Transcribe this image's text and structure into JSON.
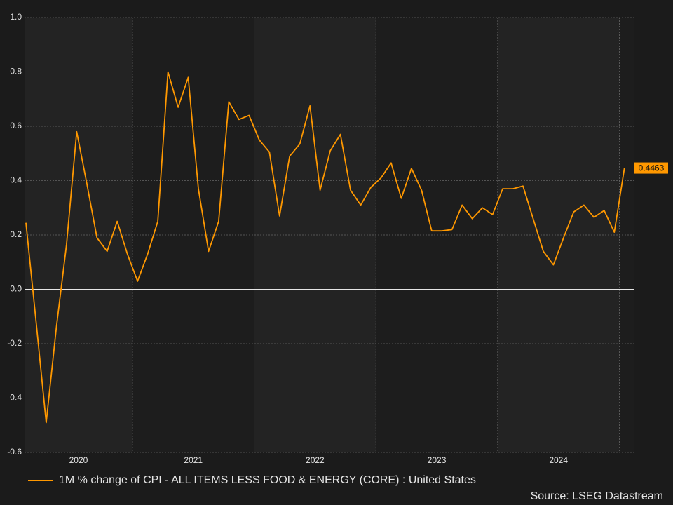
{
  "chart_data": {
    "type": "line",
    "categories": [
      null,
      null,
      null,
      null,
      "2020",
      null,
      null,
      null,
      null,
      null,
      null,
      null,
      null,
      null,
      null,
      null,
      "2021",
      null,
      null,
      null,
      null,
      null,
      null,
      null,
      null,
      null,
      null,
      null,
      "2022",
      null,
      null,
      null,
      null,
      null,
      null,
      null,
      null,
      null,
      null,
      null,
      "2023",
      null,
      null,
      null,
      null,
      null,
      null,
      null,
      null,
      null,
      null,
      null,
      "2024",
      null,
      null,
      null,
      null,
      null,
      null,
      null
    ],
    "series": [
      {
        "name": "1M % change of CPI - ALL ITEMS LESS FOOD & ENERGY (CORE) : United States",
        "color": "#ff9800",
        "values": [
          0.245,
          -0.12,
          -0.49,
          -0.14,
          0.165,
          0.58,
          0.39,
          0.19,
          0.14,
          0.25,
          0.13,
          0.03,
          0.13,
          0.25,
          0.8,
          0.67,
          0.78,
          0.37,
          0.14,
          0.25,
          0.69,
          0.625,
          0.64,
          0.55,
          0.505,
          0.27,
          0.49,
          0.535,
          0.675,
          0.365,
          0.51,
          0.57,
          0.365,
          0.31,
          0.375,
          0.41,
          0.465,
          0.335,
          0.445,
          0.365,
          0.215,
          0.215,
          0.22,
          0.31,
          0.26,
          0.3,
          0.275,
          0.37,
          0.37,
          0.38,
          0.26,
          0.14,
          0.09,
          0.19,
          0.285,
          0.31,
          0.265,
          0.29,
          0.21,
          0.4463
        ]
      }
    ],
    "ylim": [
      -0.6,
      1.0
    ],
    "yticks": [
      -0.6,
      -0.4,
      -0.2,
      {
        "value": 0,
        "label": "0.0"
      },
      0.2,
      0.4,
      0.6,
      0.8,
      {
        "value": 1,
        "label": "1.0"
      }
    ],
    "grid": true,
    "source": "Source: LSEG Datastream"
  }
}
